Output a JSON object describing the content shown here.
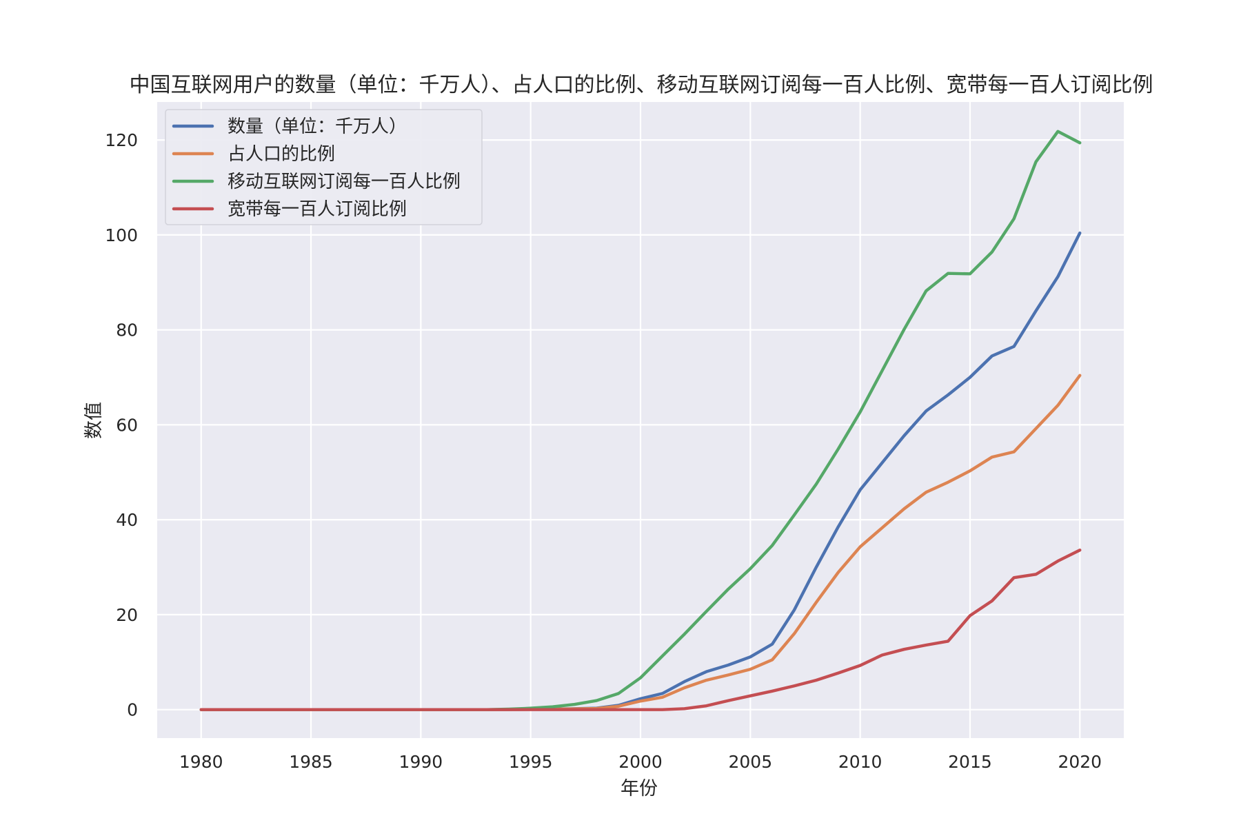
{
  "chart_data": {
    "type": "line",
    "title": "中国互联网用户的数量（单位：千万人）、占人口的比例、移动互联网订阅每一百人比例、宽带每一百人订阅比例",
    "xlabel": "年份",
    "ylabel": "数值",
    "xlim": [
      1978,
      2022
    ],
    "ylim": [
      -6,
      128
    ],
    "x_ticks": [
      1980,
      1985,
      1990,
      1995,
      2000,
      2005,
      2010,
      2015,
      2020
    ],
    "y_ticks": [
      0,
      20,
      40,
      60,
      80,
      100,
      120
    ],
    "grid": true,
    "legend_position": "top-left",
    "background": "#EAEAF2",
    "x": [
      1980,
      1981,
      1982,
      1983,
      1984,
      1985,
      1986,
      1987,
      1988,
      1989,
      1990,
      1991,
      1992,
      1993,
      1994,
      1995,
      1996,
      1997,
      1998,
      1999,
      2000,
      2001,
      2002,
      2003,
      2004,
      2005,
      2006,
      2007,
      2008,
      2009,
      2010,
      2011,
      2012,
      2013,
      2014,
      2015,
      2016,
      2017,
      2018,
      2019,
      2020
    ],
    "series": [
      {
        "name": "数量（单位：千万人）",
        "color": "#4C72B0",
        "values": [
          0,
          0,
          0,
          0,
          0,
          0,
          0,
          0,
          0,
          0,
          0,
          0,
          0,
          0,
          0.01,
          0.06,
          0.1,
          0.2,
          0.3,
          0.9,
          2.3,
          3.4,
          5.9,
          8.0,
          9.4,
          11.1,
          13.8,
          21.0,
          30.0,
          38.5,
          46.3,
          52.0,
          57.7,
          62.9,
          66.3,
          70.0,
          74.5,
          76.5,
          84.0,
          91.2,
          100.4
        ]
      },
      {
        "name": "占人口的比例",
        "color": "#DD8452",
        "values": [
          0,
          0,
          0,
          0,
          0,
          0,
          0,
          0,
          0,
          0,
          0,
          0,
          0,
          0,
          0.01,
          0.05,
          0.09,
          0.16,
          0.24,
          0.71,
          1.8,
          2.6,
          4.6,
          6.2,
          7.3,
          8.5,
          10.5,
          16.0,
          22.6,
          28.9,
          34.3,
          38.3,
          42.3,
          45.8,
          47.9,
          50.3,
          53.2,
          54.3,
          59.2,
          64.1,
          70.4
        ]
      },
      {
        "name": "移动互联网订阅每一百人比例",
        "color": "#55A868",
        "values": [
          0,
          0,
          0,
          0,
          0,
          0,
          0,
          0,
          0,
          0,
          0,
          0,
          0,
          0,
          0.1,
          0.3,
          0.6,
          1.1,
          1.9,
          3.4,
          6.7,
          11.3,
          15.9,
          20.7,
          25.4,
          29.7,
          34.6,
          41.0,
          47.5,
          54.9,
          62.7,
          71.4,
          80.1,
          88.2,
          91.9,
          91.8,
          96.4,
          103.4,
          115.4,
          121.8,
          119.4
        ]
      },
      {
        "name": "宽带每一百人订阅比例",
        "color": "#C44E52",
        "values": [
          0,
          0,
          0,
          0,
          0,
          0,
          0,
          0,
          0,
          0,
          0,
          0,
          0,
          0,
          0,
          0,
          0,
          0,
          0,
          0,
          0,
          0,
          0.2,
          0.8,
          1.9,
          2.9,
          3.9,
          5.0,
          6.2,
          7.7,
          9.3,
          11.5,
          12.7,
          13.6,
          14.4,
          19.8,
          22.9,
          27.8,
          28.5,
          31.3,
          33.6
        ]
      }
    ]
  }
}
